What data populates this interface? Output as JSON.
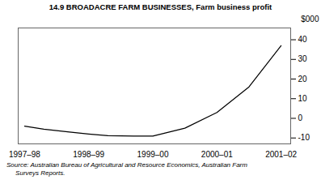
{
  "chart_data": {
    "type": "line",
    "title": "14.9  BROADACRE FARM BUSINESSES, Farm business profit",
    "ylabel": "$000",
    "x": [
      0,
      0.3,
      0.7,
      1.0,
      1.3,
      1.7,
      2.0,
      2.5,
      3.0,
      3.5,
      4.0
    ],
    "values": [
      -4.0,
      -5.5,
      -7.0,
      -8.0,
      -8.8,
      -9.0,
      -9.0,
      -5.0,
      3.0,
      16.0,
      37.0
    ],
    "color": "#000000",
    "xlim": [
      -0.1,
      4.15
    ],
    "xticks": [
      {
        "value": 0,
        "label": "1997–98"
      },
      {
        "value": 1,
        "label": "1998–99"
      },
      {
        "value": 2,
        "label": "1999–00"
      },
      {
        "value": 3,
        "label": "2000–01"
      },
      {
        "value": 4,
        "label": "2001–02"
      }
    ],
    "ylim": [
      -13,
      46
    ],
    "yticks": [
      -10,
      0,
      10,
      20,
      30,
      40
    ],
    "grid": false,
    "annotations": [
      "Source: Australian Bureau of Agricultural and Resource Economics, Australian Farm",
      "     Surveys Reports."
    ]
  }
}
